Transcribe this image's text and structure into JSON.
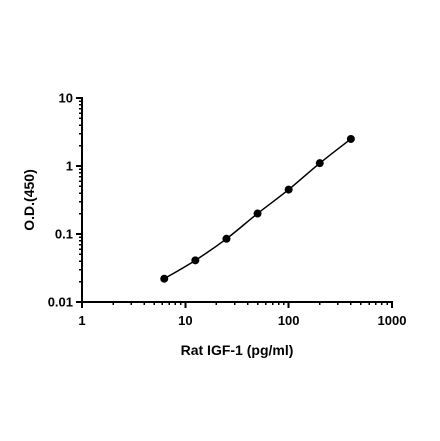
{
  "chart_data": {
    "type": "scatter",
    "title": "",
    "xlabel": "Rat IGF-1 (pg/ml)",
    "ylabel": "O.D.(450)",
    "x_scale": "log",
    "y_scale": "log",
    "xlim": [
      1,
      1000
    ],
    "ylim": [
      0.01,
      10
    ],
    "grid": false,
    "x_ticks": [
      "1",
      "10",
      "100",
      "1000"
    ],
    "y_ticks": [
      "0.01",
      "0.1",
      "1",
      "10"
    ],
    "series": [
      {
        "x": [
          6.25,
          12.5,
          25,
          50,
          100,
          200,
          400
        ],
        "y": [
          0.022,
          0.041,
          0.085,
          0.2,
          0.45,
          1.1,
          2.5
        ],
        "marker": "circle",
        "fit_line": true,
        "color": "#000000"
      }
    ]
  }
}
